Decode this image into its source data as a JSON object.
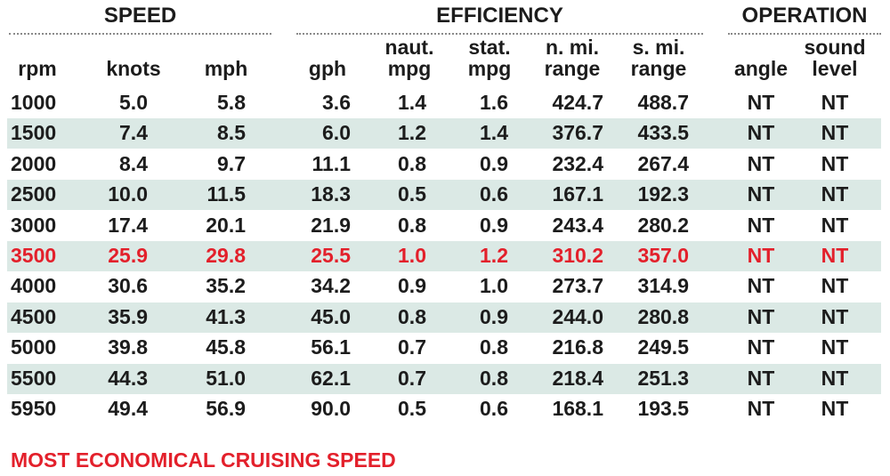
{
  "groups": [
    "SPEED",
    "EFFICIENCY",
    "OPERATION"
  ],
  "columns": [
    [
      "rpm"
    ],
    [
      "knots"
    ],
    [
      "mph"
    ],
    [
      "gph"
    ],
    [
      "naut.",
      "mpg"
    ],
    [
      "stat.",
      "mpg"
    ],
    [
      "n. mi.",
      "range"
    ],
    [
      "s. mi.",
      "range"
    ],
    [
      "angle"
    ],
    [
      "sound",
      "level"
    ]
  ],
  "rows": [
    [
      "1000",
      "5.0",
      "5.8",
      "3.6",
      "1.4",
      "1.6",
      "424.7",
      "488.7",
      "NT",
      "NT"
    ],
    [
      "1500",
      "7.4",
      "8.5",
      "6.0",
      "1.2",
      "1.4",
      "376.7",
      "433.5",
      "NT",
      "NT"
    ],
    [
      "2000",
      "8.4",
      "9.7",
      "11.1",
      "0.8",
      "0.9",
      "232.4",
      "267.4",
      "NT",
      "NT"
    ],
    [
      "2500",
      "10.0",
      "11.5",
      "18.3",
      "0.5",
      "0.6",
      "167.1",
      "192.3",
      "NT",
      "NT"
    ],
    [
      "3000",
      "17.4",
      "20.1",
      "21.9",
      "0.8",
      "0.9",
      "243.4",
      "280.2",
      "NT",
      "NT"
    ],
    [
      "3500",
      "25.9",
      "29.8",
      "25.5",
      "1.0",
      "1.2",
      "310.2",
      "357.0",
      "NT",
      "NT"
    ],
    [
      "4000",
      "30.6",
      "35.2",
      "34.2",
      "0.9",
      "1.0",
      "273.7",
      "314.9",
      "NT",
      "NT"
    ],
    [
      "4500",
      "35.9",
      "41.3",
      "45.0",
      "0.8",
      "0.9",
      "244.0",
      "280.8",
      "NT",
      "NT"
    ],
    [
      "5000",
      "39.8",
      "45.8",
      "56.1",
      "0.7",
      "0.8",
      "216.8",
      "249.5",
      "NT",
      "NT"
    ],
    [
      "5500",
      "44.3",
      "51.0",
      "62.1",
      "0.7",
      "0.8",
      "218.4",
      "251.3",
      "NT",
      "NT"
    ],
    [
      "5950",
      "49.4",
      "56.9",
      "90.0",
      "0.5",
      "0.6",
      "168.1",
      "193.5",
      "NT",
      "NT"
    ]
  ],
  "highlight": {
    "row": 5,
    "color": "#e3202b"
  },
  "note": "MOST ECONOMICAL CRUISING SPEED"
}
